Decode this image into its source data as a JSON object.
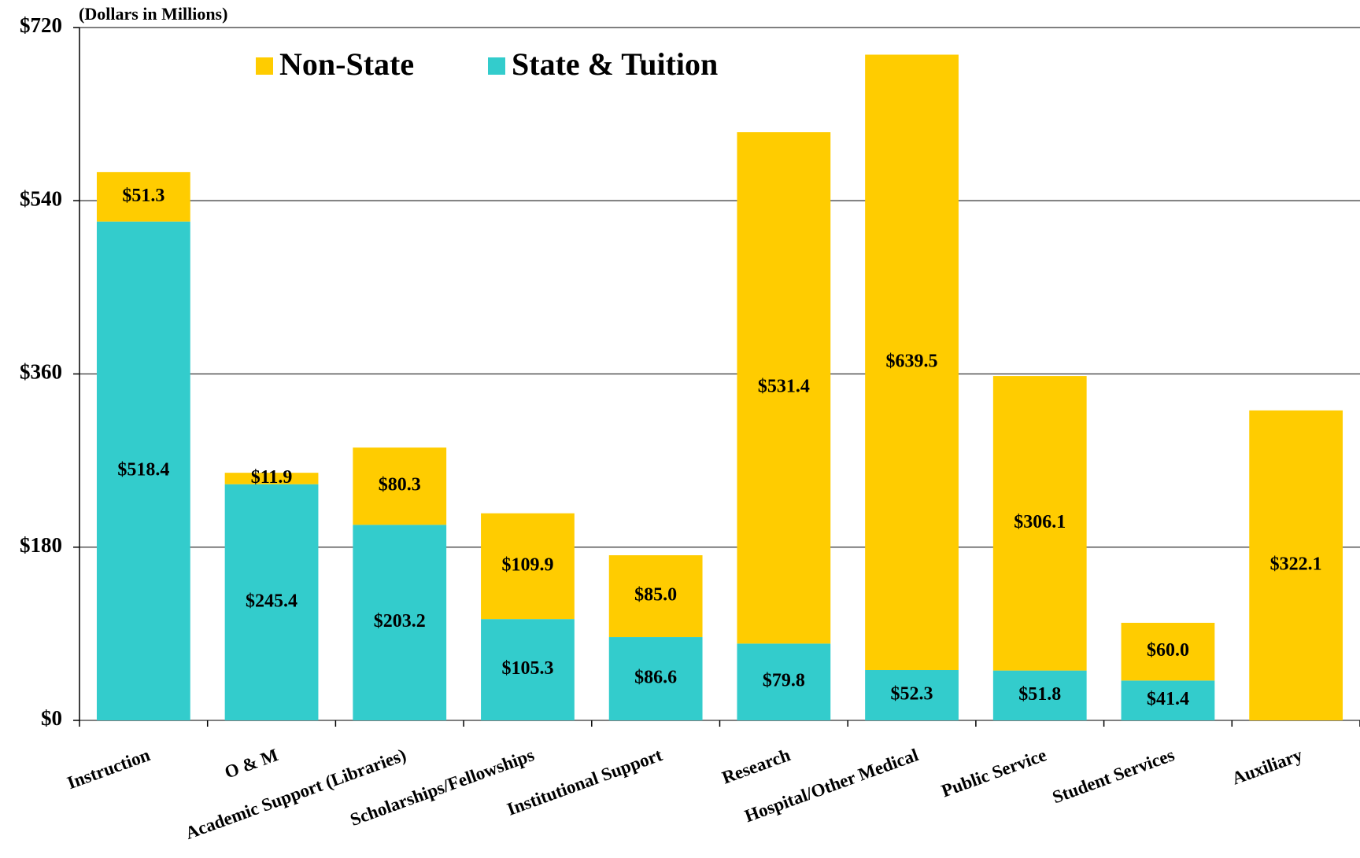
{
  "chart_data": {
    "type": "stacked_bar",
    "subtitle": "(Dollars in Millions)",
    "categories": [
      "Instruction",
      "O & M",
      "Academic Support (Libraries)",
      "Scholarships/Fellowships",
      "Institutional Support",
      "Research",
      "Hospital/Other Medical",
      "Public Service",
      "Student Services",
      "Auxiliary"
    ],
    "series": [
      {
        "name": "Non-State",
        "color": "#ffcc00",
        "values": [
          51.3,
          11.9,
          80.3,
          109.9,
          85,
          531.4,
          639.5,
          306.1,
          60,
          322.1
        ],
        "value_labels": [
          "$51.3",
          "$11.9",
          "$80.3",
          "$109.9",
          "$85.0",
          "$531.4",
          "$639.5",
          "$306.1",
          "$60.0",
          "$322.1"
        ]
      },
      {
        "name": "State & Tuition",
        "color": "#33cccc",
        "values": [
          518.4,
          245.4,
          203.2,
          105.3,
          86.6,
          79.8,
          52.3,
          51.8,
          41.4,
          null
        ],
        "value_labels": [
          "$518.4",
          "$245.4",
          "$203.2",
          "$105.3",
          "$86.6",
          "$79.8",
          "$52.3",
          "$51.8",
          "$41.4",
          null
        ]
      }
    ],
    "ylim": [
      0,
      720
    ],
    "yticks": [
      {
        "value": 0,
        "label": "$0"
      },
      {
        "value": 180,
        "label": "$180"
      },
      {
        "value": 360,
        "label": "$360"
      },
      {
        "value": 540,
        "label": "$540"
      },
      {
        "value": 720,
        "label": "$720"
      }
    ],
    "grid": true
  }
}
